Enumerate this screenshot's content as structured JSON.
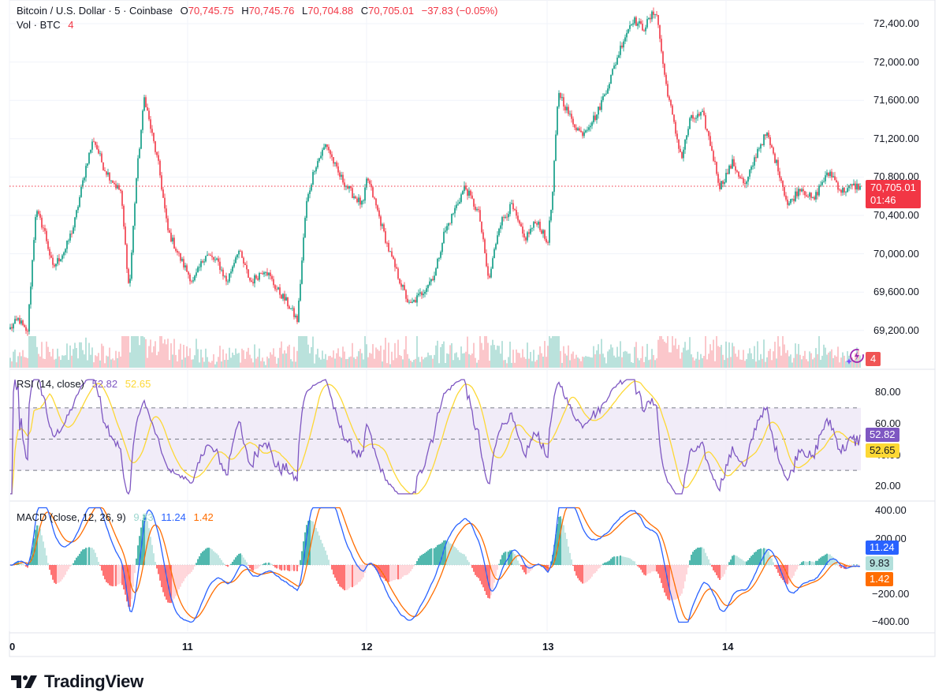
{
  "header": {
    "symbol": "Bitcoin / U.S. Dollar · 5 · Coinbase",
    "open_prefix": "O",
    "open": "70,745.75",
    "high_prefix": "H",
    "high": "70,745.76",
    "low_prefix": "L",
    "low": "70,704.88",
    "close_prefix": "C",
    "close": "70,705.01",
    "change": "−37.83 (−0.05%)",
    "volume_label": "Vol · BTC",
    "volume_value": "4"
  },
  "price_axis": {
    "labels": [
      "72,400.00",
      "72,000.00",
      "71,600.00",
      "71,200.00",
      "70,800.00",
      "70,400.00",
      "70,000.00",
      "69,600.00",
      "69,200.00"
    ],
    "current_price": "70,705.01",
    "countdown": "01:46",
    "volume_badge": "4"
  },
  "rsi": {
    "title": "RSI (14, close)",
    "value": "52.82",
    "ma_value": "52.65",
    "axis_labels": [
      "80.00",
      "60.00",
      "40.00",
      "20.00"
    ]
  },
  "macd": {
    "title": "MACD (close, 12, 26, 9)",
    "histogram": "9.83",
    "macd_value": "11.24",
    "signal_value": "1.42",
    "axis_labels": [
      "400.00",
      "200.00",
      "−200.00",
      "−400.00"
    ]
  },
  "time_axis": {
    "labels": [
      "0",
      "11",
      "12",
      "13",
      "14"
    ]
  },
  "branding": {
    "logo_text": "TradingView"
  },
  "colors": {
    "up": "#089981",
    "down": "#f23645",
    "rsi_line": "#7e57c2",
    "rsi_ma": "#fdd835",
    "macd_line": "#2962ff",
    "signal_line": "#ff6d00",
    "hist_up": "#26a69a",
    "hist_down": "#ff5252",
    "rsi_band": "#ede7f6",
    "grid": "#f0f3fa"
  },
  "chart_data": {
    "type": "candlestick",
    "title": "Bitcoin / U.S. Dollar · 5 · Coinbase",
    "timeframe": "5",
    "exchange": "Coinbase",
    "x_ticks": [
      "0",
      "11",
      "12",
      "13",
      "14"
    ],
    "ylim": [
      68950,
      72650
    ],
    "y_ticks": [
      69200,
      69600,
      70000,
      70400,
      70800,
      71200,
      71600,
      72000,
      72400
    ],
    "last": {
      "open": 70745.75,
      "high": 70745.76,
      "low": 70704.88,
      "close": 70705.01,
      "change": -37.83,
      "change_pct": -0.05
    },
    "close_path": [
      [
        0.0,
        69220
      ],
      [
        0.01,
        69320
      ],
      [
        0.02,
        69150
      ],
      [
        0.03,
        70450
      ],
      [
        0.04,
        70250
      ],
      [
        0.05,
        69850
      ],
      [
        0.065,
        70050
      ],
      [
        0.075,
        70300
      ],
      [
        0.09,
        70950
      ],
      [
        0.098,
        71200
      ],
      [
        0.11,
        70900
      ],
      [
        0.125,
        70700
      ],
      [
        0.13,
        70650
      ],
      [
        0.14,
        69600
      ],
      [
        0.148,
        70750
      ],
      [
        0.158,
        71650
      ],
      [
        0.163,
        71400
      ],
      [
        0.175,
        70900
      ],
      [
        0.185,
        70250
      ],
      [
        0.2,
        69950
      ],
      [
        0.215,
        69700
      ],
      [
        0.23,
        70000
      ],
      [
        0.245,
        69900
      ],
      [
        0.255,
        69700
      ],
      [
        0.268,
        70050
      ],
      [
        0.283,
        69700
      ],
      [
        0.3,
        69850
      ],
      [
        0.312,
        69650
      ],
      [
        0.325,
        69500
      ],
      [
        0.338,
        69300
      ],
      [
        0.348,
        70500
      ],
      [
        0.358,
        70900
      ],
      [
        0.372,
        71150
      ],
      [
        0.385,
        70850
      ],
      [
        0.4,
        70650
      ],
      [
        0.415,
        70500
      ],
      [
        0.42,
        70800
      ],
      [
        0.432,
        70450
      ],
      [
        0.445,
        70050
      ],
      [
        0.455,
        69800
      ],
      [
        0.47,
        69450
      ],
      [
        0.485,
        69600
      ],
      [
        0.5,
        69800
      ],
      [
        0.51,
        70200
      ],
      [
        0.525,
        70500
      ],
      [
        0.535,
        70700
      ],
      [
        0.552,
        70400
      ],
      [
        0.563,
        69700
      ],
      [
        0.575,
        70300
      ],
      [
        0.59,
        70500
      ],
      [
        0.605,
        70150
      ],
      [
        0.62,
        70350
      ],
      [
        0.632,
        70100
      ],
      [
        0.638,
        70600
      ],
      [
        0.645,
        71700
      ],
      [
        0.66,
        71400
      ],
      [
        0.672,
        71250
      ],
      [
        0.69,
        71450
      ],
      [
        0.705,
        71800
      ],
      [
        0.72,
        72200
      ],
      [
        0.732,
        72450
      ],
      [
        0.745,
        72350
      ],
      [
        0.76,
        72550
      ],
      [
        0.77,
        71850
      ],
      [
        0.782,
        71300
      ],
      [
        0.79,
        71000
      ],
      [
        0.8,
        71400
      ],
      [
        0.815,
        71450
      ],
      [
        0.825,
        71100
      ],
      [
        0.835,
        70700
      ],
      [
        0.85,
        70950
      ],
      [
        0.865,
        70700
      ],
      [
        0.88,
        71100
      ],
      [
        0.89,
        71250
      ],
      [
        0.905,
        70850
      ],
      [
        0.915,
        70500
      ],
      [
        0.93,
        70700
      ],
      [
        0.945,
        70550
      ],
      [
        0.955,
        70750
      ],
      [
        0.965,
        70850
      ],
      [
        0.978,
        70650
      ],
      [
        0.99,
        70700
      ],
      [
        1.0,
        70705
      ]
    ],
    "volume": {
      "label": "Vol · BTC",
      "last": 4
    },
    "indicators": {
      "rsi": {
        "length": 14,
        "source": "close",
        "value": 52.82,
        "ma": 52.65,
        "bands": [
          30,
          50,
          70
        ],
        "ylim": [
          15,
          88
        ]
      },
      "macd": {
        "fast": 12,
        "slow": 26,
        "signal": 9,
        "histogram": 9.83,
        "macd": 11.24,
        "signal_value": 1.42,
        "ylim": [
          -420,
          420
        ]
      }
    }
  }
}
